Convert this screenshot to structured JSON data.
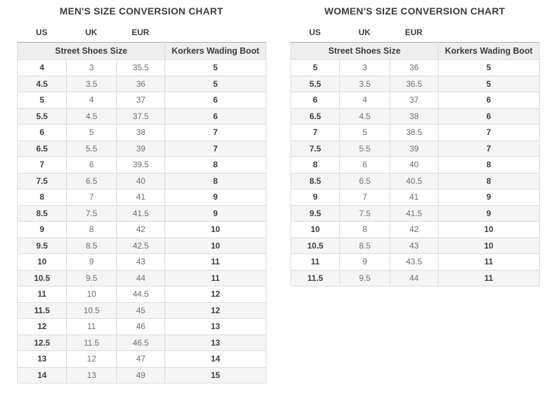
{
  "charts": [
    {
      "title": "MEN'S SIZE CONVERSION CHART",
      "size_system_labels": [
        "US",
        "UK",
        "EUR"
      ],
      "group_headers": [
        "Street Shoes Size",
        "Korkers Wading Boot"
      ],
      "columns": [
        "US",
        "UK",
        "EUR",
        "Korkers Wading Boot"
      ],
      "rows": [
        [
          "4",
          "3",
          "35.5",
          "5"
        ],
        [
          "4.5",
          "3.5",
          "36",
          "5"
        ],
        [
          "5",
          "4",
          "37",
          "6"
        ],
        [
          "5.5",
          "4.5",
          "37.5",
          "6"
        ],
        [
          "6",
          "5",
          "38",
          "7"
        ],
        [
          "6.5",
          "5.5",
          "39",
          "7"
        ],
        [
          "7",
          "6",
          "39.5",
          "8"
        ],
        [
          "7.5",
          "6.5",
          "40",
          "8"
        ],
        [
          "8",
          "7",
          "41",
          "9"
        ],
        [
          "8.5",
          "7.5",
          "41.5",
          "9"
        ],
        [
          "9",
          "8",
          "42",
          "10"
        ],
        [
          "9.5",
          "8.5",
          "42.5",
          "10"
        ],
        [
          "10",
          "9",
          "43",
          "11"
        ],
        [
          "10.5",
          "9.5",
          "44",
          "11"
        ],
        [
          "11",
          "10",
          "44.5",
          "12"
        ],
        [
          "11.5",
          "10.5",
          "45",
          "12"
        ],
        [
          "12",
          "11",
          "46",
          "13"
        ],
        [
          "12.5",
          "11.5",
          "46.5",
          "13"
        ],
        [
          "13",
          "12",
          "47",
          "14"
        ],
        [
          "14",
          "13",
          "49",
          "15"
        ]
      ]
    },
    {
      "title": "WOMEN'S SIZE CONVERSION CHART",
      "size_system_labels": [
        "US",
        "UK",
        "EUR"
      ],
      "group_headers": [
        "Street Shoes Size",
        "Korkers Wading Boot"
      ],
      "columns": [
        "US",
        "UK",
        "EUR",
        "Korkers Wading Boot"
      ],
      "rows": [
        [
          "5",
          "3",
          "36",
          "5"
        ],
        [
          "5.5",
          "3.5",
          "36.5",
          "5"
        ],
        [
          "6",
          "4",
          "37",
          "6"
        ],
        [
          "6.5",
          "4.5",
          "38",
          "6"
        ],
        [
          "7",
          "5",
          "38.5",
          "7"
        ],
        [
          "7.5",
          "5.5",
          "39",
          "7"
        ],
        [
          "8",
          "6",
          "40",
          "8"
        ],
        [
          "8.5",
          "6.5",
          "40.5",
          "8"
        ],
        [
          "9",
          "7",
          "41",
          "9"
        ],
        [
          "9.5",
          "7.5",
          "41.5",
          "9"
        ],
        [
          "10",
          "8",
          "42",
          "10"
        ],
        [
          "10.5",
          "8.5",
          "43",
          "10"
        ],
        [
          "11",
          "9",
          "43.5",
          "11"
        ],
        [
          "11.5",
          "9.5",
          "44",
          "11"
        ]
      ]
    }
  ],
  "colors": {
    "title_text": "#3d3d3d",
    "bold_cell_text": "#3d3d3d",
    "muted_cell_text": "#6e6e6e",
    "header_band_bg": "#eeeeee",
    "header_band_top_border": "#aaaaaa",
    "row_stripe_bg": "#f5f5f5",
    "cell_border": "#dbdbdb",
    "page_bg": "#ffffff"
  }
}
